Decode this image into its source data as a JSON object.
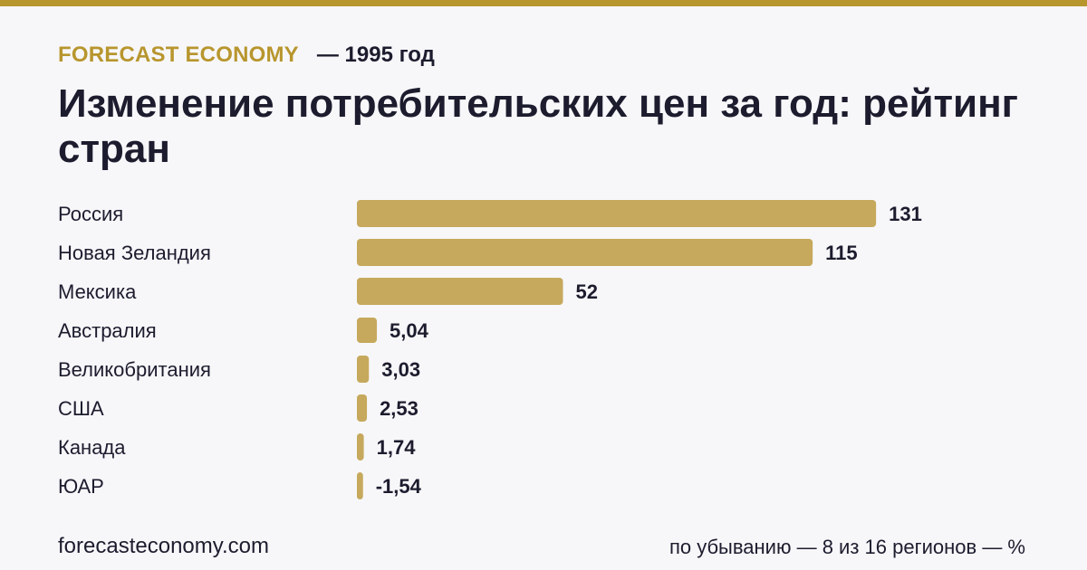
{
  "header": {
    "brand": "FORECAST ECONOMY",
    "period": "— 1995 год",
    "title": "Изменение потребительских цен за год: рейтинг стран"
  },
  "footer": {
    "site": "forecasteconomy.com",
    "note": "по убыванию — 8 из 16 регионов — %"
  },
  "colors": {
    "accent": "#b8962e",
    "bar": "#c6a95c",
    "text": "#1c1c2e",
    "background": "#f7f7fa"
  },
  "chart_data": {
    "type": "bar",
    "orientation": "horizontal",
    "categories": [
      "Россия",
      "Новая Зеландия",
      "Мексика",
      "Австралия",
      "Великобритания",
      "США",
      "Канада",
      "ЮАР"
    ],
    "values": [
      131,
      115,
      52,
      5.04,
      3.03,
      2.53,
      1.74,
      -1.54
    ],
    "value_labels": [
      "131",
      "115",
      "52",
      "5,04",
      "3,03",
      "2,53",
      "1,74",
      "-1,54"
    ],
    "unit": "%"
  }
}
